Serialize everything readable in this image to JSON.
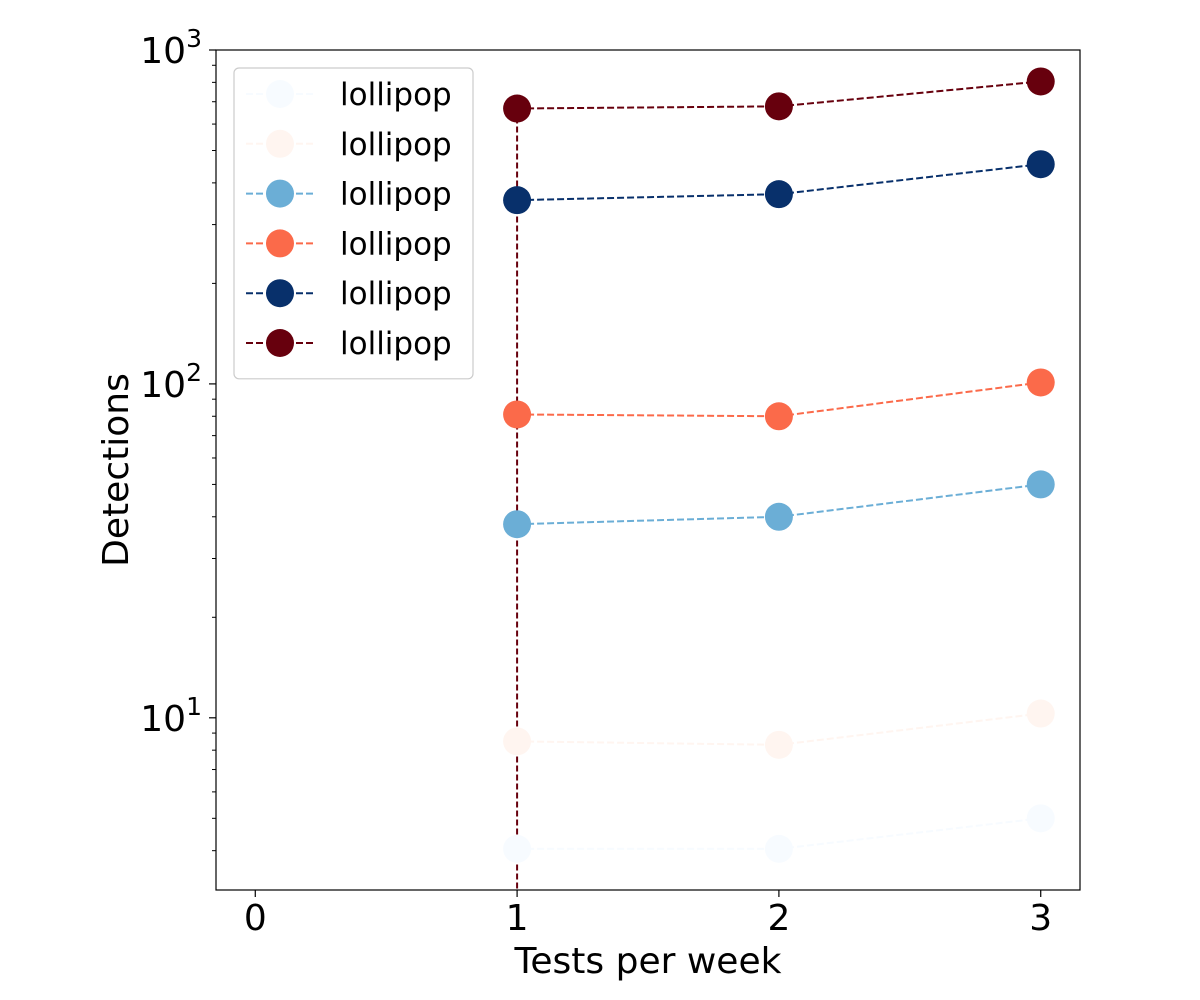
{
  "chart_data": {
    "type": "line",
    "title": "",
    "xlabel": "Tests per week",
    "ylabel": "Detections",
    "xlim": [
      -0.15,
      3.15
    ],
    "ylim": [
      3.05,
      1000
    ],
    "yscale": "log",
    "xticks": [
      0,
      1,
      2,
      3
    ],
    "xtick_labels": [
      "0",
      "1",
      "2",
      "3"
    ],
    "yticks": [
      10,
      100,
      1000
    ],
    "ytick_labels": [
      {
        "base": "10",
        "exp": "1"
      },
      {
        "base": "10",
        "exp": "2"
      },
      {
        "base": "10",
        "exp": "3"
      }
    ],
    "grid": false,
    "legend_position": "top-left",
    "line_style": "dashed",
    "marker": "circle",
    "vertical_line": {
      "x": 1,
      "color": "#67000d",
      "style": "dashed"
    },
    "x": [
      1,
      2,
      3
    ],
    "series": [
      {
        "name": "lollipop",
        "color": "#f7fbff",
        "values": [
          4.05,
          4.05,
          5.0
        ]
      },
      {
        "name": "lollipop",
        "color": "#fff5f0",
        "values": [
          8.5,
          8.3,
          10.3
        ]
      },
      {
        "name": "lollipop",
        "color": "#6baed6",
        "values": [
          38,
          40,
          50
        ]
      },
      {
        "name": "lollipop",
        "color": "#fb6a4a",
        "values": [
          81,
          80,
          101
        ]
      },
      {
        "name": "lollipop",
        "color": "#08306b",
        "values": [
          355,
          370,
          455
        ]
      },
      {
        "name": "lollipop",
        "color": "#67000d",
        "values": [
          668,
          678,
          805
        ]
      }
    ]
  }
}
